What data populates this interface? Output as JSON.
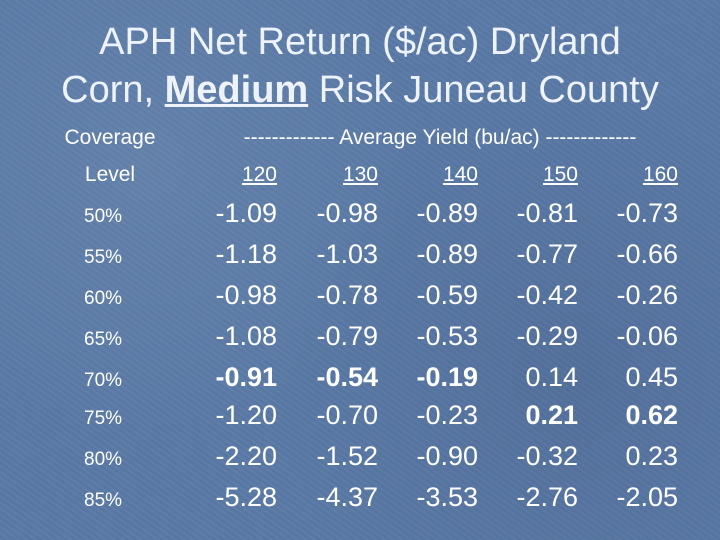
{
  "title": {
    "line1": "APH Net Return ($/ac) Dryland",
    "line2_prefix": "Corn, ",
    "line2_emph": "Medium",
    "line2_suffix": " Risk Juneau County"
  },
  "header": {
    "coverage_line1": "Coverage",
    "coverage_line2": "Level",
    "average_yield": "------------- Average Yield (bu/ac) -------------",
    "yields": [
      "120",
      "130",
      "140",
      "150",
      "160"
    ]
  },
  "rows": [
    {
      "level": "50%",
      "values": [
        "-1.09",
        "-0.98",
        "-0.89",
        "-0.81",
        "-0.73"
      ],
      "bold": [
        false,
        false,
        false,
        false,
        false
      ]
    },
    {
      "level": "55%",
      "values": [
        "-1.18",
        "-1.03",
        "-0.89",
        "-0.77",
        "-0.66"
      ],
      "bold": [
        false,
        false,
        false,
        false,
        false
      ]
    },
    {
      "level": "60%",
      "values": [
        "-0.98",
        "-0.78",
        "-0.59",
        "-0.42",
        "-0.26"
      ],
      "bold": [
        false,
        false,
        false,
        false,
        false
      ]
    },
    {
      "level": "65%",
      "values": [
        "-1.08",
        "-0.79",
        "-0.53",
        "-0.29",
        "-0.06"
      ],
      "bold": [
        false,
        false,
        false,
        false,
        false
      ]
    },
    {
      "level": "70%",
      "values": [
        "-0.91",
        "-0.54",
        "-0.19",
        "0.14",
        "0.45"
      ],
      "bold": [
        true,
        true,
        true,
        false,
        false
      ]
    },
    {
      "level": "75%",
      "values": [
        "-1.20",
        "-0.70",
        "-0.23",
        "0.21",
        "0.62"
      ],
      "bold": [
        false,
        false,
        false,
        true,
        true
      ]
    },
    {
      "level": "80%",
      "values": [
        "-2.20",
        "-1.52",
        "-0.90",
        "-0.32",
        "0.23"
      ],
      "bold": [
        false,
        false,
        false,
        false,
        false
      ]
    },
    {
      "level": "85%",
      "values": [
        "-5.28",
        "-4.37",
        "-3.53",
        "-2.76",
        "-2.05"
      ],
      "bold": [
        false,
        false,
        false,
        false,
        false
      ]
    }
  ]
}
